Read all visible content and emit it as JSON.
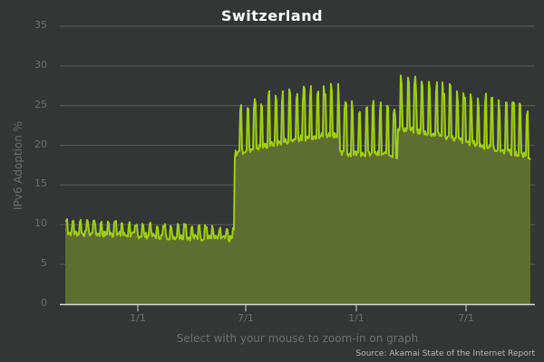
{
  "chart_data": {
    "type": "area",
    "title": "Switzerland",
    "xlabel": "",
    "ylabel": "IPv6 Adoption %",
    "ylim": [
      0,
      35
    ],
    "yticks": [
      "0",
      "5",
      "10",
      "15",
      "20",
      "25",
      "30",
      "35"
    ],
    "xticks": [
      "1/1",
      "7/1",
      "1/1",
      "7/1"
    ],
    "grid": true,
    "series": [
      {
        "name": "IPv6 Adoption %",
        "color": "#9fce12",
        "fill": "#5e6e30",
        "segments": [
          {
            "period": "start to 1/1",
            "approx_baseline": 8.9,
            "weekly_peaks": 10.8
          },
          {
            "period": "1/1 to ~6/20",
            "approx_baseline": 8.5,
            "weekly_peaks": 10.0
          },
          {
            "period": "~6/20 to 1/1",
            "approx_baseline": 19.5,
            "weekly_peaks": 24.5,
            "max": 27.0
          },
          {
            "period": "1/1 to end",
            "approx_baseline": 20.0,
            "weekly_peaks": 25.5,
            "max": 28.7
          }
        ],
        "values_sampled": [
          9.5,
          9.2,
          9.0,
          8.9,
          9.3,
          8.8,
          8.7,
          8.9,
          8.8,
          9.0,
          8.9,
          8.7,
          8.6,
          8.6,
          8.5,
          8.6,
          8.4,
          8.4,
          8.5,
          8.5,
          8.4,
          8.3,
          8.3,
          8.2,
          8.3,
          8.2,
          8.1,
          19.0,
          19.2,
          19.3,
          19.5,
          19.6,
          19.8,
          20.0,
          20.3,
          20.8,
          21.5,
          20.8,
          20.2,
          19.5,
          18.8,
          18.3,
          17.8,
          17.5,
          17.8,
          19.5,
          19.8,
          20.0,
          20.3,
          20.6,
          20.8,
          20.6,
          20.4,
          20.8,
          21.2,
          21.0,
          20.8,
          20.5
        ]
      }
    ],
    "annotations": [
      "Select with your mouse to zoom-in on graph",
      "Source: Akamai State of the Internet Report"
    ]
  },
  "title": "Switzerland",
  "ylabel": "IPv6 Adoption %",
  "hint": "Select with your mouse to zoom-in on graph",
  "source": "Source: Akamai State of the Internet Report",
  "colors": {
    "background": "#333635",
    "line": "#9fce12",
    "fill": "#5e6e30",
    "grid": "#5a5d5b",
    "axis": "#d8d8d8"
  }
}
